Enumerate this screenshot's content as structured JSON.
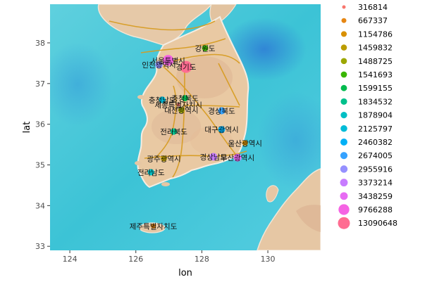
{
  "chart_data": {
    "type": "scatter",
    "xlabel": "lon",
    "ylabel": "lat",
    "xlim": [
      123.4,
      131.6
    ],
    "ylim": [
      32.9,
      38.95
    ],
    "xticks": [
      124,
      126,
      128,
      130
    ],
    "yticks": [
      33,
      34,
      35,
      36,
      37,
      38
    ],
    "grid": false,
    "background": "map tiles (watercolor)",
    "legend_position": "right",
    "points": [
      {
        "label": "서울특별시",
        "lon": 126.98,
        "lat": 37.57,
        "pop": 9766288,
        "color": "#F564E3"
      },
      {
        "label": "인천광역시",
        "lon": 126.7,
        "lat": 37.46,
        "pop": 2955916,
        "color": "#9590FF"
      },
      {
        "label": "경기도",
        "lon": 127.52,
        "lat": 37.41,
        "pop": 13090648,
        "color": "#FF6C91"
      },
      {
        "label": "강원도",
        "lon": 128.1,
        "lat": 37.87,
        "pop": 1541693,
        "color": "#39B600"
      },
      {
        "label": "충청북도",
        "lon": 127.49,
        "lat": 36.64,
        "pop": 1599155,
        "color": "#00BB4E"
      },
      {
        "label": "충청남도",
        "lon": 126.8,
        "lat": 36.6,
        "pop": 2125797,
        "color": "#00BCD8"
      },
      {
        "label": "세종특별자치시",
        "lon": 127.29,
        "lat": 36.48,
        "pop": 316814,
        "color": "#F8766D"
      },
      {
        "label": "대전광역시",
        "lon": 127.38,
        "lat": 36.35,
        "pop": 1488725,
        "color": "#9CA700"
      },
      {
        "label": "경상북도",
        "lon": 128.6,
        "lat": 36.33,
        "pop": 2674005,
        "color": "#35A2FF"
      },
      {
        "label": "전라북도",
        "lon": 127.15,
        "lat": 35.82,
        "pop": 1834532,
        "color": "#00C08B"
      },
      {
        "label": "대구광역시",
        "lon": 128.6,
        "lat": 35.87,
        "pop": 2460382,
        "color": "#00B0F6"
      },
      {
        "label": "울산광역시",
        "lon": 129.31,
        "lat": 35.54,
        "pop": 1154786,
        "color": "#D89000"
      },
      {
        "label": "경상남도",
        "lon": 128.35,
        "lat": 35.2,
        "pop": 3373214,
        "color": "#C77CFF"
      },
      {
        "label": "부산광역시",
        "lon": 129.08,
        "lat": 35.18,
        "pop": 3438259,
        "color": "#E76BF3"
      },
      {
        "label": "광주광역시",
        "lon": 126.85,
        "lat": 35.16,
        "pop": 1459832,
        "color": "#BB9D00"
      },
      {
        "label": "전라남도",
        "lon": 126.46,
        "lat": 34.82,
        "pop": 1878904,
        "color": "#00BFC4"
      },
      {
        "label": "제주특별자치도",
        "lon": 126.53,
        "lat": 33.5,
        "pop": 667337,
        "color": "#E68613"
      }
    ],
    "legend": [
      {
        "label": "316814",
        "color": "#F8766D"
      },
      {
        "label": "667337",
        "color": "#E68613"
      },
      {
        "label": "1154786",
        "color": "#D89000"
      },
      {
        "label": "1459832",
        "color": "#BB9D00"
      },
      {
        "label": "1488725",
        "color": "#9CA700"
      },
      {
        "label": "1541693",
        "color": "#39B600"
      },
      {
        "label": "1599155",
        "color": "#00BB4E"
      },
      {
        "label": "1834532",
        "color": "#00C08B"
      },
      {
        "label": "1878904",
        "color": "#00BFC4"
      },
      {
        "label": "2125797",
        "color": "#00BCD8"
      },
      {
        "label": "2460382",
        "color": "#00B0F6"
      },
      {
        "label": "2674005",
        "color": "#35A2FF"
      },
      {
        "label": "2955916",
        "color": "#9590FF"
      },
      {
        "label": "3373214",
        "color": "#C77CFF"
      },
      {
        "label": "3438259",
        "color": "#E76BF3"
      },
      {
        "label": "9766288",
        "color": "#F564E3"
      },
      {
        "label": "13090648",
        "color": "#FF6C91"
      }
    ]
  }
}
